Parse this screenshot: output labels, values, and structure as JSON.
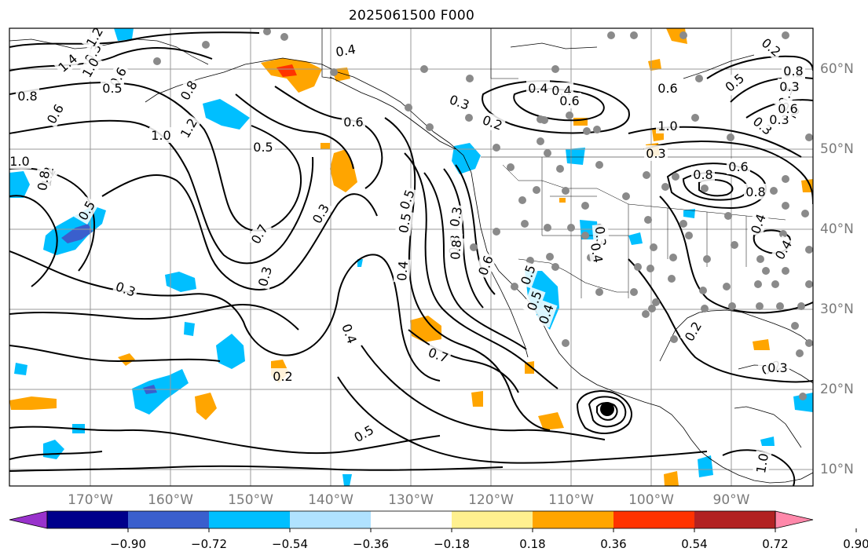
{
  "title": "2025061500 F000",
  "longitude_labels": [
    "170°W",
    "160°W",
    "150°W",
    "140°W",
    "130°W",
    "120°W",
    "110°W",
    "100°W",
    "90°W"
  ],
  "latitude_labels": [
    "60°N",
    "50°N",
    "40°N",
    "30°N",
    "20°N",
    "10°N"
  ],
  "contour_labels": [
    "0.8",
    "0.6",
    "1.0",
    "1.2",
    "0.3",
    "0.5",
    "0.7",
    "0.4",
    "0.6",
    "0.5",
    "0.7",
    "0.5",
    "0.8",
    "0.4",
    "0.6",
    "0.3",
    "0.2",
    "0.3",
    "0.8",
    "0.6",
    "0.4",
    "0.3",
    "0.2",
    "0.6",
    "0.4",
    "0.3",
    "0.2",
    "0.5",
    "0.4",
    "0.3",
    "1.4",
    "0.3",
    "1.0",
    "1.2",
    "0.3",
    "0.8",
    "1.2",
    "0.6",
    "0.3",
    "0.8",
    "0.4",
    "0.2",
    "1.0",
    "1.2",
    "0.5",
    "0.8",
    "0.4",
    "0.5",
    "0.5",
    "0.4",
    "0.3",
    "0.5",
    "0.3",
    "0.2",
    "0.3",
    "0.2",
    "0.6",
    "0.5",
    "0.8",
    "0.4",
    "0.6",
    "1.0",
    "1.0",
    "0.2",
    "0.8",
    "0.3"
  ],
  "colorbar": {
    "tick_labels": [
      "−0.90",
      "−0.72",
      "−0.54",
      "−0.36",
      "−0.18",
      "0.18",
      "0.36",
      "0.54",
      "0.72",
      "0.90"
    ],
    "colors": [
      "#9932cc",
      "#00008b",
      "#3a5fcd",
      "#00bfff",
      "#b0e2ff",
      "#ffffff",
      "#fff08f",
      "#ffa500",
      "#ff3300",
      "#b22222",
      "#ff88aa"
    ]
  },
  "field_colors": {
    "positive_shade": "#ffa500",
    "negative_shade": "#00bfff",
    "strong_negative": "#3a5fcd",
    "strong_positive": "#ff3300",
    "station": "#8a8a8a",
    "cyclone": "#000000"
  }
}
